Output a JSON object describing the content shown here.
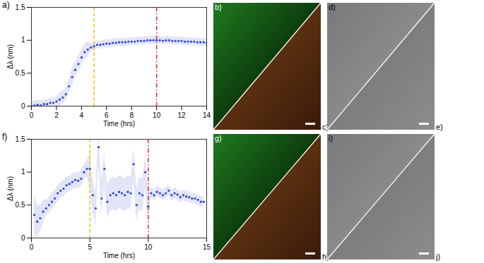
{
  "chart_data": [
    {
      "type": "scatter",
      "title": "a)",
      "x_label": "Time (hrs)",
      "y_label": "Δλ (nm)",
      "color": "#3344cc",
      "marker": "circle",
      "x": [
        0,
        0.25,
        0.5,
        0.75,
        1,
        1.25,
        1.5,
        1.75,
        2,
        2.25,
        2.5,
        2.75,
        3,
        3.25,
        3.5,
        3.75,
        4,
        4.25,
        4.5,
        4.75,
        5,
        5.25,
        5.5,
        5.75,
        6,
        6.25,
        6.5,
        6.75,
        7,
        7.25,
        7.5,
        7.75,
        8,
        8.25,
        8.5,
        8.75,
        9,
        9.25,
        9.5,
        9.75,
        10,
        10.25,
        10.5,
        10.75,
        11,
        11.25,
        11.5,
        11.75,
        12,
        12.25,
        12.5,
        12.75,
        13,
        13.25,
        13.5,
        13.75,
        14
      ],
      "values": [
        0,
        0.01,
        0.02,
        0.01,
        0.03,
        0.03,
        0.05,
        0.05,
        0.07,
        0.1,
        0.13,
        0.18,
        0.3,
        0.44,
        0.55,
        0.64,
        0.74,
        0.82,
        0.86,
        0.89,
        0.91,
        0.93,
        0.93,
        0.94,
        0.95,
        0.95,
        0.96,
        0.96,
        0.97,
        0.97,
        0.97,
        0.98,
        0.98,
        0.98,
        0.99,
        0.99,
        0.99,
        1,
        1,
        1,
        1,
        1,
        0.99,
        1,
        1,
        0.99,
        0.99,
        0.99,
        0.99,
        0.98,
        0.98,
        0.98,
        0.98,
        0.97,
        0.97,
        0.97,
        0.96
      ],
      "error": [
        0.07,
        0.07,
        0.07,
        0.07,
        0.07,
        0.07,
        0.07,
        0.07,
        0.07,
        0.1,
        0.1,
        0.1,
        0.1,
        0.12,
        0.12,
        0.12,
        0.12,
        0.12,
        0.12,
        0.06,
        0.06,
        0.06,
        0.06,
        0.06,
        0.06,
        0.06,
        0.06,
        0.06,
        0.06,
        0.06,
        0.06,
        0.06,
        0.06,
        0.06,
        0.06,
        0.06,
        0.06,
        0.06,
        0.06,
        0.06,
        0.06,
        0.06,
        0.06,
        0.06,
        0.06,
        0.06,
        0.06,
        0.06,
        0.06,
        0.06,
        0.06,
        0.06,
        0.06,
        0.06,
        0.06,
        0.06,
        0.06
      ],
      "xlim": [
        0,
        14
      ],
      "xticks": [
        0,
        2,
        4,
        6,
        8,
        10,
        12,
        14
      ],
      "ylim": [
        0,
        1.5
      ],
      "yticks": [
        0,
        0.5,
        1,
        1.5
      ],
      "vlines": [
        {
          "x": 5,
          "color": "#f2c218",
          "line_style": "dashed"
        },
        {
          "x": 10,
          "color": "#e02828",
          "line_style": "dashdot"
        }
      ]
    },
    {
      "type": "scatter",
      "title": "f)",
      "x_label": "Time (hrs)",
      "y_label": "Δλ (nm)",
      "color": "#3344cc",
      "marker": "circle",
      "x": [
        0.25,
        0.5,
        0.75,
        1,
        1.25,
        1.5,
        1.75,
        2,
        2.25,
        2.5,
        2.75,
        3,
        3.25,
        3.5,
        3.75,
        4,
        4.25,
        4.5,
        4.75,
        5,
        5.25,
        5.5,
        5.75,
        6,
        6.25,
        6.5,
        6.75,
        7,
        7.25,
        7.5,
        7.75,
        8,
        8.25,
        8.5,
        8.75,
        9,
        9.25,
        9.5,
        9.75,
        10,
        10.25,
        10.5,
        10.75,
        11,
        11.25,
        11.5,
        11.75,
        12,
        12.25,
        12.5,
        12.75,
        13,
        13.25,
        13.5,
        13.75,
        14,
        14.25,
        14.5,
        14.75
      ],
      "values": [
        0.35,
        0.25,
        0.3,
        0.4,
        0.45,
        0.5,
        0.55,
        0.6,
        0.68,
        0.72,
        0.75,
        0.8,
        0.82,
        0.85,
        0.88,
        0.87,
        0.9,
        1,
        1.05,
        1.05,
        0.65,
        0.45,
        1.38,
        0.6,
        1.05,
        0.55,
        0.65,
        0.68,
        0.65,
        0.7,
        0.68,
        0.65,
        0.7,
        0.68,
        1.12,
        0.5,
        0.68,
        0.65,
        1,
        0.48,
        0.68,
        0.65,
        0.7,
        0.68,
        0.65,
        0.68,
        0.72,
        0.65,
        0.68,
        0.66,
        0.62,
        0.65,
        0.63,
        0.62,
        0.6,
        0.6,
        0.58,
        0.55,
        0.55
      ],
      "error": [
        0.3,
        0.25,
        0.2,
        0.18,
        0.12,
        0.12,
        0.12,
        0.12,
        0.12,
        0.12,
        0.12,
        0.12,
        0.12,
        0.12,
        0.12,
        0.12,
        0.12,
        0.12,
        0.12,
        0.25,
        0.25,
        0.25,
        0.25,
        0.25,
        0.25,
        0.25,
        0.25,
        0.25,
        0.25,
        0.25,
        0.25,
        0.25,
        0.25,
        0.25,
        0.25,
        0.25,
        0.25,
        0.25,
        0.25,
        0.25,
        0.08,
        0.08,
        0.08,
        0.08,
        0.08,
        0.08,
        0.08,
        0.08,
        0.08,
        0.08,
        0.08,
        0.08,
        0.08,
        0.08,
        0.08,
        0.08,
        0.08,
        0.08,
        0.08
      ],
      "xlim": [
        0,
        15
      ],
      "xticks": [
        0,
        5,
        10,
        15
      ],
      "ylim": [
        0,
        1.5
      ],
      "yticks": [
        0,
        0.5,
        1,
        1.5
      ],
      "vlines": [
        {
          "x": 5,
          "color": "#f2c218",
          "line_style": "dashed"
        },
        {
          "x": 10,
          "color": "#e02828",
          "line_style": "dashdot"
        }
      ]
    }
  ],
  "images": [
    {
      "type": "fluorescence",
      "labels": [
        "b)",
        "c)"
      ]
    },
    {
      "type": "phase contrast",
      "labels": [
        "d)",
        "e)"
      ]
    },
    {
      "type": "fluorescence",
      "labels": [
        "g)",
        "h)"
      ]
    },
    {
      "type": "phase contrast",
      "labels": [
        "i)",
        "j)"
      ]
    }
  ]
}
